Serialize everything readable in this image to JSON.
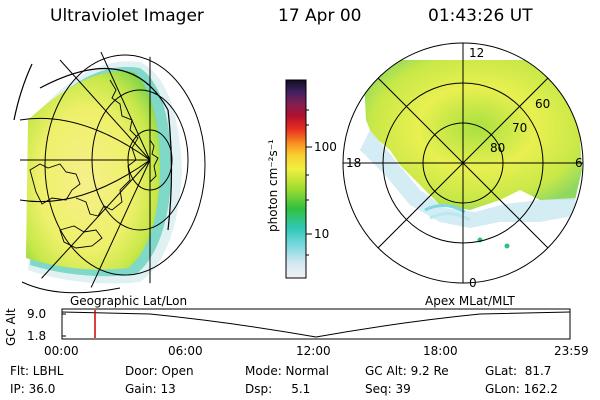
{
  "header": {
    "instrument": "Ultraviolet Imager",
    "date": "17 Apr 00",
    "time": "01:43:26 UT"
  },
  "colorbar": {
    "unit_label": "photon cm⁻²s⁻¹",
    "ticks": [
      "100",
      "10"
    ]
  },
  "polar_plot": {
    "labels": {
      "top": "12",
      "bottom": "0",
      "left": "18",
      "right": "6",
      "lat_60": "60",
      "lat_70": "70",
      "lat_80": "80"
    }
  },
  "timeline": {
    "left_caption": "Geographic Lat/Lon",
    "right_caption": "Apex MLat/MLT",
    "axis_label": "GC Alt",
    "y_ticks": [
      "9.0",
      "1.8"
    ],
    "x_ticks": [
      "00:00",
      "06:00",
      "12:00",
      "18:00",
      "23:59"
    ],
    "marker_time": "01:43"
  },
  "info": {
    "filter": "Flt: LBHL",
    "ip": "IP: 36.0",
    "door": "Door: Open",
    "gain": "Gain: 13",
    "mode": "Mode: Normal",
    "dsp": "Dsp:     5.1",
    "gc_alt": "GC Alt: 9.2 Re",
    "seq": "Seq: 39",
    "glat": "GLat:  81.7",
    "glon": "GLon: 162.2"
  },
  "colors": {
    "marker": "#cc0000",
    "grid": "#000000"
  }
}
